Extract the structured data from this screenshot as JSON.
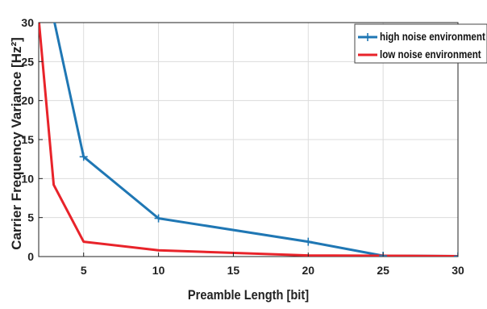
{
  "chart_data": {
    "type": "line",
    "xlabel": "Preamble Length [bit]",
    "ylabel": "Carrier Frequency Variance [Hz²]",
    "xlim": [
      2,
      30
    ],
    "ylim": [
      0,
      30
    ],
    "xticks": [
      5,
      10,
      15,
      20,
      25,
      30
    ],
    "yticks": [
      0,
      5,
      10,
      15,
      20,
      25,
      30
    ],
    "grid": true,
    "legend_position": "top-right",
    "series": [
      {
        "name": "high noise environment",
        "color": "#1f77b4",
        "marker": "plus",
        "x": [
          3,
          5,
          10,
          20,
          25,
          30
        ],
        "y": [
          30.5,
          12.8,
          4.9,
          1.9,
          0.1,
          0.05
        ]
      },
      {
        "name": "low noise environment",
        "color": "#e8232a",
        "marker": "none",
        "x": [
          2,
          3,
          5,
          10,
          20,
          25,
          30
        ],
        "y": [
          30.5,
          9.2,
          1.9,
          0.8,
          0.15,
          0.1,
          0.05
        ]
      }
    ]
  }
}
